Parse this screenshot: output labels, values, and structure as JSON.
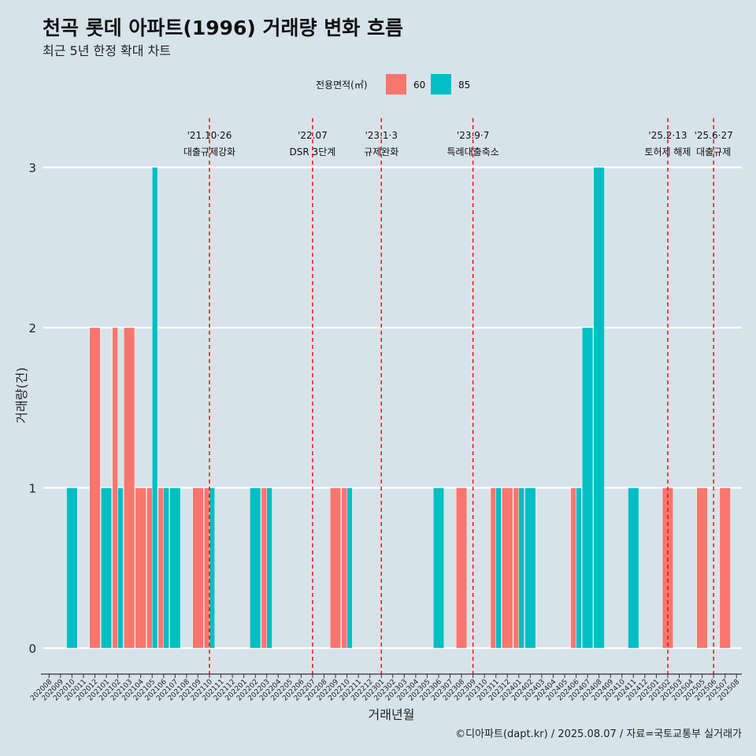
{
  "chart_data": {
    "type": "bar",
    "title": "천곡 롯데 아파트(1996) 거래량 변화 흐름",
    "subtitle": "최근 5년 한정 확대 차트",
    "xlabel": "거래년월",
    "ylabel": "거래량(건)",
    "caption": "©디아파트(dapt.kr) / 2025.08.07 / 자료=국토교통부 실거래가",
    "ylim": [
      0,
      3
    ],
    "y_ticks": [
      0,
      1,
      2,
      3
    ],
    "legend": {
      "title": "전용면적(㎡)",
      "placement": "top",
      "entries": [
        {
          "name": "60",
          "color": "#f8766d"
        },
        {
          "name": "85",
          "color": "#00bfc4"
        }
      ]
    },
    "categories": [
      "202008",
      "202009",
      "202010",
      "202011",
      "202012",
      "202101",
      "202102",
      "202103",
      "202104",
      "202105",
      "202106",
      "202107",
      "202108",
      "202109",
      "202110",
      "202111",
      "202112",
      "202201",
      "202202",
      "202203",
      "202204",
      "202205",
      "202206",
      "202207",
      "202208",
      "202209",
      "202210",
      "202211",
      "202212",
      "202301",
      "202302",
      "202303",
      "202304",
      "202305",
      "202306",
      "202307",
      "202308",
      "202309",
      "202310",
      "202311",
      "202312",
      "202401",
      "202402",
      "202403",
      "202404",
      "202405",
      "202406",
      "202407",
      "202408",
      "202409",
      "202410",
      "202411",
      "202412",
      "202501",
      "202502",
      "202503",
      "202504",
      "202505",
      "202506",
      "202507",
      "202508"
    ],
    "series": [
      {
        "name": "60",
        "color": "#f8766d",
        "values": [
          {
            "x": "202012",
            "y": 2
          },
          {
            "x": "202102",
            "y": 2
          },
          {
            "x": "202103",
            "y": 2
          },
          {
            "x": "202104",
            "y": 1
          },
          {
            "x": "202105",
            "y": 1
          },
          {
            "x": "202106",
            "y": 1
          },
          {
            "x": "202109",
            "y": 1
          },
          {
            "x": "202110",
            "y": 1
          },
          {
            "x": "202203",
            "y": 1
          },
          {
            "x": "202209",
            "y": 1
          },
          {
            "x": "202210",
            "y": 1
          },
          {
            "x": "202308",
            "y": 1
          },
          {
            "x": "202311",
            "y": 1
          },
          {
            "x": "202312",
            "y": 1
          },
          {
            "x": "202401",
            "y": 1
          },
          {
            "x": "202406",
            "y": 1
          },
          {
            "x": "202502",
            "y": 1
          },
          {
            "x": "202505",
            "y": 1
          },
          {
            "x": "202507",
            "y": 1
          }
        ]
      },
      {
        "name": "85",
        "color": "#00bfc4",
        "values": [
          {
            "x": "202010",
            "y": 1
          },
          {
            "x": "202101",
            "y": 1
          },
          {
            "x": "202102",
            "y": 1
          },
          {
            "x": "202105",
            "y": 3
          },
          {
            "x": "202106",
            "y": 1
          },
          {
            "x": "202107",
            "y": 1
          },
          {
            "x": "202110",
            "y": 1
          },
          {
            "x": "202202",
            "y": 1
          },
          {
            "x": "202203",
            "y": 1
          },
          {
            "x": "202210",
            "y": 1
          },
          {
            "x": "202306",
            "y": 1
          },
          {
            "x": "202311",
            "y": 1
          },
          {
            "x": "202401",
            "y": 1
          },
          {
            "x": "202402",
            "y": 1
          },
          {
            "x": "202406",
            "y": 1
          },
          {
            "x": "202407",
            "y": 2
          },
          {
            "x": "202408",
            "y": 3
          },
          {
            "x": "202411",
            "y": 1
          }
        ]
      }
    ],
    "annotations": [
      {
        "x": "202110",
        "date": "'21.10·26",
        "label": "대출규제강화"
      },
      {
        "x": "202207",
        "date": "'22.07",
        "label": "DSR 3단계"
      },
      {
        "x": "202301",
        "date": "'23.1·3",
        "label": "규제완화"
      },
      {
        "x": "202309",
        "date": "'23.9·7",
        "label": "특례대출축소"
      },
      {
        "x": "202502",
        "date": "'25.2·13",
        "label": "토허제 해제"
      },
      {
        "x": "202506",
        "date": "'25.6·27",
        "label": "대출규제"
      }
    ]
  }
}
